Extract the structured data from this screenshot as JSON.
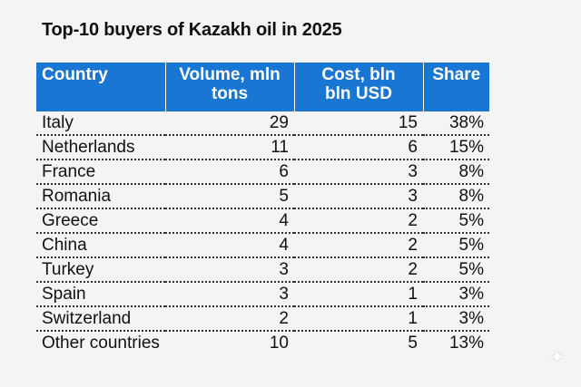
{
  "title": "Top-10 buyers of Kazakh oil in 2025",
  "headers": {
    "country": "Country",
    "volume_line1": "Volume, mln",
    "volume_line2": "tons",
    "cost_line1": "Cost, bln",
    "cost_line2": "bln USD",
    "share": "Share"
  },
  "header_color": "#1976d2",
  "rows": [
    {
      "country": "Italy",
      "volume": "29",
      "cost": "15",
      "share": "38%"
    },
    {
      "country": "Netherlands",
      "volume": "11",
      "cost": "6",
      "share": "15%"
    },
    {
      "country": "France",
      "volume": "6",
      "cost": "3",
      "share": "8%"
    },
    {
      "country": "Romania",
      "volume": "5",
      "cost": "3",
      "share": "8%"
    },
    {
      "country": "Greece",
      "volume": "4",
      "cost": "2",
      "share": "5%"
    },
    {
      "country": "China",
      "volume": "4",
      "cost": "2",
      "share": "5%"
    },
    {
      "country": "Turkey",
      "volume": "3",
      "cost": "2",
      "share": "5%"
    },
    {
      "country": "Spain",
      "volume": "3",
      "cost": "1",
      "share": "3%"
    },
    {
      "country": "Switzerland",
      "volume": "2",
      "cost": "1",
      "share": "3%"
    },
    {
      "country": "Other countries",
      "volume": "10",
      "cost": "5",
      "share": "13%"
    }
  ],
  "corner_icon": "sparkle-icon"
}
